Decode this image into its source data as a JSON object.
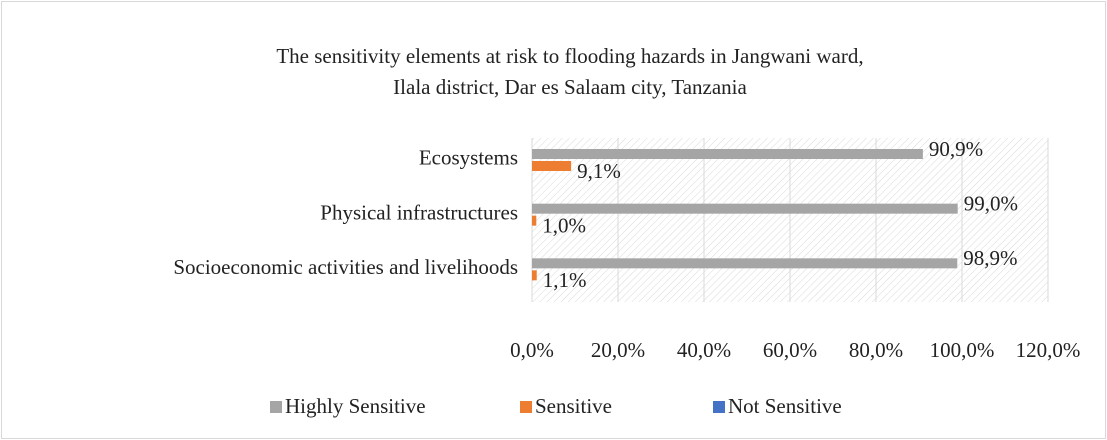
{
  "chart_data": {
    "type": "hbar",
    "title": [
      "The sensitivity elements at risk to flooding hazards in Jangwani ward,",
      "Ilala district, Dar es Salaam city, Tanzania"
    ],
    "categories": [
      "Ecosystems",
      "Physical infrastructures",
      "Socioeconomic activities and livelihoods"
    ],
    "series": [
      {
        "name": "Highly Sensitive",
        "color": "#a5a5a5",
        "values": [
          90.9,
          99.0,
          98.9
        ],
        "value_labels": [
          "90,9%",
          "99,0%",
          "98,9%"
        ]
      },
      {
        "name": "Sensitive",
        "color": "#ed7d31",
        "values": [
          9.1,
          1.0,
          1.1
        ],
        "value_labels": [
          "9,1%",
          "1,0%",
          "1,1%"
        ]
      },
      {
        "name": "Not Sensitive",
        "color": "#4472c4",
        "values": [
          0,
          0,
          0
        ]
      }
    ],
    "xlim": [
      0,
      120
    ],
    "xticks": [
      {
        "value": 0,
        "label": "0,0%"
      },
      {
        "value": 20,
        "label": "20,0%"
      },
      {
        "value": 40,
        "label": "40,0%"
      },
      {
        "value": 60,
        "label": "60,0%"
      },
      {
        "value": 80,
        "label": "80,0%"
      },
      {
        "value": 100,
        "label": "100,0%"
      },
      {
        "value": 120,
        "label": "120,0%"
      }
    ],
    "grid": true,
    "legend": "bottom"
  }
}
